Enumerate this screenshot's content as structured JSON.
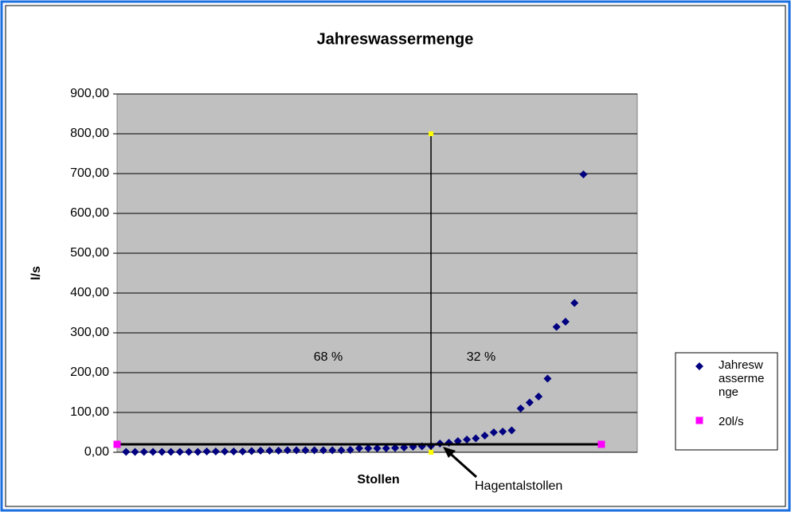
{
  "chart_data": {
    "type": "scatter",
    "title": "Jahreswassermenge",
    "x_label": "Stollen",
    "y_label": "l/s",
    "xlim": [
      0,
      58
    ],
    "ylim": [
      0,
      900
    ],
    "yticks": [
      {
        "value": 0,
        "label": "0,00"
      },
      {
        "value": 100,
        "label": "100,00"
      },
      {
        "value": 200,
        "label": "200,00"
      },
      {
        "value": 300,
        "label": "300,00"
      },
      {
        "value": 400,
        "label": "400,00"
      },
      {
        "value": 500,
        "label": "500,00"
      },
      {
        "value": 600,
        "label": "600,00"
      },
      {
        "value": 700,
        "label": "700,00"
      },
      {
        "value": 800,
        "label": "800,00"
      },
      {
        "value": 900,
        "label": "900,00"
      }
    ],
    "grid": true,
    "series": [
      {
        "name": "Jahreswassermenge",
        "color": "#000080",
        "marker": "diamond",
        "x": [
          1,
          2,
          3,
          4,
          5,
          6,
          7,
          8,
          9,
          10,
          11,
          12,
          13,
          14,
          15,
          16,
          17,
          18,
          19,
          20,
          21,
          22,
          23,
          24,
          25,
          26,
          27,
          28,
          29,
          30,
          31,
          32,
          33,
          34,
          35,
          36,
          37,
          38,
          39,
          40,
          41,
          42,
          43,
          44,
          45,
          46,
          47,
          48,
          49,
          50,
          51,
          52
        ],
        "values": [
          1,
          1,
          1,
          1,
          1,
          1,
          1,
          1,
          1,
          2,
          2,
          2,
          2,
          2,
          3,
          4,
          4,
          4,
          5,
          5,
          5,
          5,
          5,
          5,
          5,
          6,
          10,
          10,
          10,
          10,
          11,
          12,
          14,
          15,
          16,
          22,
          24,
          28,
          32,
          35,
          42,
          50,
          52,
          55,
          110,
          125,
          140,
          185,
          315,
          328,
          375,
          698
        ]
      },
      {
        "name": "20l/s",
        "color": "#ff00ff",
        "line_color": "#000000",
        "marker": "square",
        "x": [
          0,
          54
        ],
        "values": [
          20,
          20
        ]
      },
      {
        "color": "#ffff00",
        "line_color": "#000000",
        "marker": "square",
        "x": [
          35,
          35
        ],
        "values": [
          800,
          0
        ]
      }
    ],
    "annotations": [
      "68 %",
      "32 %",
      "Hagentalstollen"
    ]
  }
}
